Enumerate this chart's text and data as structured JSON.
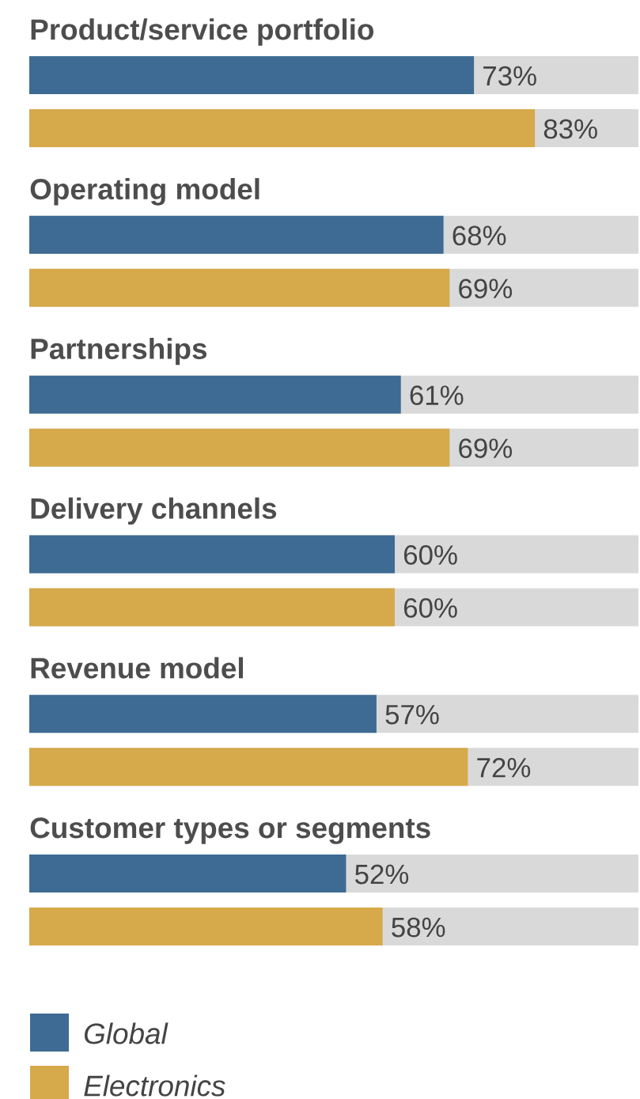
{
  "chart_data": {
    "type": "bar",
    "orientation": "horizontal",
    "categories": [
      "Product/service portfolio",
      "Operating model",
      "Partnerships",
      "Delivery channels",
      "Revenue model",
      "Customer types or segments"
    ],
    "series": [
      {
        "name": "Global",
        "color": "#3d6b93",
        "values": [
          73,
          68,
          61,
          60,
          57,
          52
        ],
        "value_labels": [
          "73%",
          "68%",
          "61%",
          "60%",
          "57%",
          "52%"
        ]
      },
      {
        "name": "Electronics",
        "color": "#d6a94a",
        "values": [
          83,
          69,
          69,
          60,
          72,
          58
        ],
        "value_labels": [
          "83%",
          "69%",
          "69%",
          "60%",
          "72%",
          "58%"
        ]
      }
    ],
    "xlim": [
      0,
      100
    ],
    "legend": "bottom left"
  }
}
